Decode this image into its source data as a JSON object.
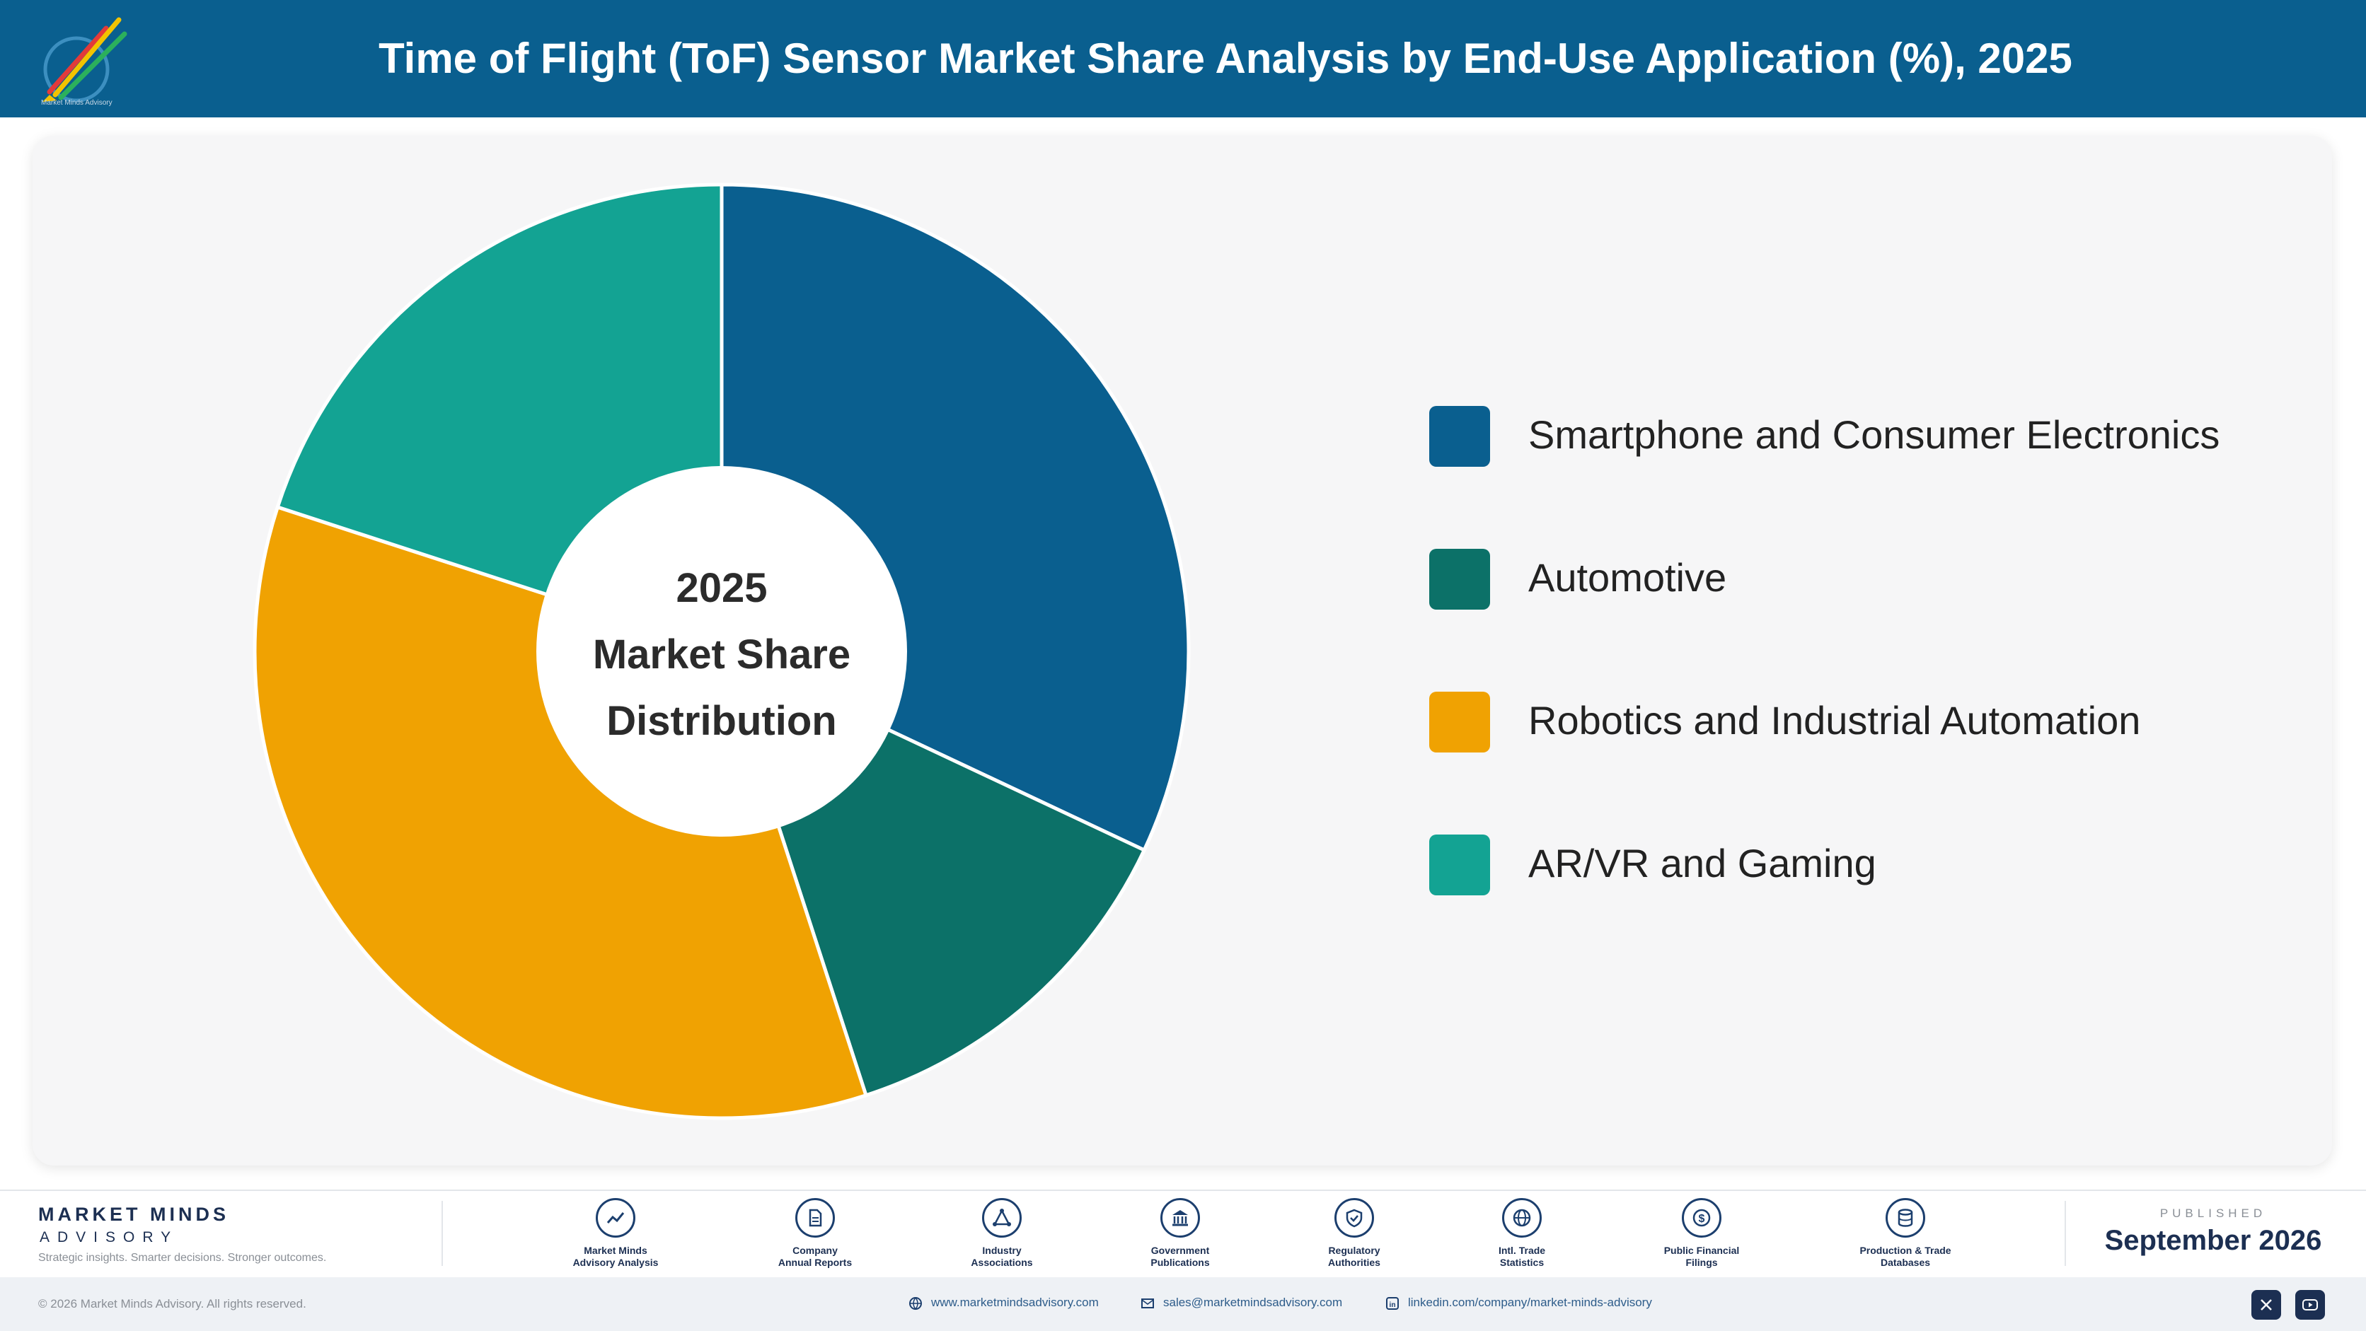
{
  "header": {
    "title": "Time of Flight (ToF) Sensor Market Share Analysis by End-Use Application (%), 2025",
    "logo_caption": "Market Minds Advisory"
  },
  "chart_data": {
    "type": "pie",
    "variant": "donut",
    "title": "",
    "center_text": [
      "2025",
      "Market Share",
      "Distribution"
    ],
    "categories": [
      "Smartphone and Consumer Electronics",
      "Automotive",
      "Robotics and Industrial Automation",
      "AR/VR and Gaming"
    ],
    "values": [
      32.0,
      13.0,
      35.0,
      20.0
    ],
    "colors": [
      "#0a5f8f",
      "#0c7168",
      "#f0a202",
      "#13a393"
    ],
    "data_labels": false,
    "legend": "right"
  },
  "footer": {
    "brand_name": "MARKET MINDS",
    "brand_sub": "ADVISORY",
    "brand_tagline": "Strategic insights. Smarter decisions. Stronger outcomes.",
    "sources": [
      {
        "icon": "trend-chart-icon",
        "line1": "Market Minds",
        "line2": "Advisory Analysis"
      },
      {
        "icon": "document-icon",
        "line1": "Company",
        "line2": "Annual Reports"
      },
      {
        "icon": "network-icon",
        "line1": "Industry",
        "line2": "Associations"
      },
      {
        "icon": "government-building-icon",
        "line1": "Government",
        "line2": "Publications"
      },
      {
        "icon": "shield-check-icon",
        "line1": "Regulatory",
        "line2": "Authorities"
      },
      {
        "icon": "globe-icon",
        "line1": "Intl. Trade",
        "line2": "Statistics"
      },
      {
        "icon": "dollar-coin-icon",
        "line1": "Public Financial",
        "line2": "Filings"
      },
      {
        "icon": "database-icon",
        "line1": "Production & Trade",
        "line2": "Databases"
      }
    ],
    "published_caption": "PUBLISHED",
    "published_date": "September 2026",
    "copyright": "© 2026 Market Minds Advisory. All rights reserved.",
    "website": "www.marketmindsadvisory.com",
    "email": "sales@marketmindsadvisory.com",
    "linkedin": "linkedin.com/company/market-minds-advisory",
    "social": [
      "x-icon",
      "youtube-icon"
    ]
  }
}
